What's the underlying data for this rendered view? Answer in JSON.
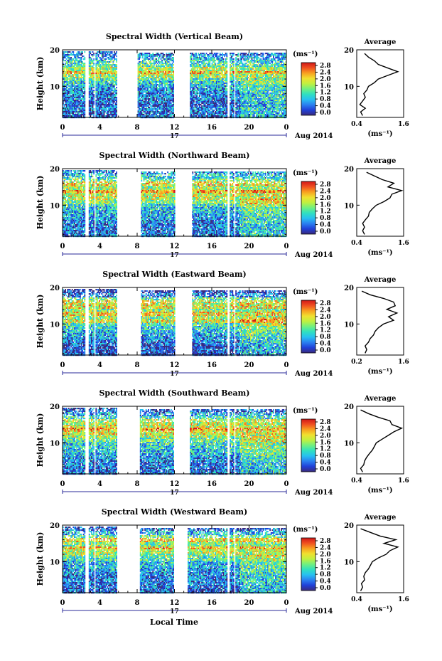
{
  "figure": {
    "x_axis_label": "Local Time",
    "date_label": "Aug 2014",
    "day_label": "17",
    "y_axis_label": "Height (km)",
    "colorbar_unit": "(ms⁻¹)",
    "colorbar_ticks": [
      "2.8",
      "2.4",
      "2.0",
      "1.6",
      "1.2",
      "0.8",
      "0.4",
      "0.0"
    ],
    "x_ticks": [
      "0",
      "4",
      "8",
      "12",
      "16",
      "20",
      "0"
    ],
    "y_ticks": [
      "20",
      "10"
    ],
    "profile_title": "Average",
    "profile_xlabel": "(ms⁻¹)",
    "colormap": [
      "#3a2a7e",
      "#2040d8",
      "#2a80f0",
      "#28c0f0",
      "#30e0c0",
      "#70f080",
      "#c0f040",
      "#f0e030",
      "#f8a020",
      "#f05020",
      "#d01818"
    ]
  },
  "chart_data": [
    {
      "type": "heatmap",
      "title": "Spectral Width (Vertical Beam)",
      "x_range_hours": [
        0,
        24
      ],
      "y_range_km": [
        1.5,
        20
      ],
      "data_gaps_hours": [
        [
          2.4,
          2.7
        ],
        [
          3.3,
          3.5
        ],
        [
          5.8,
          8.0
        ],
        [
          11.9,
          13.6
        ],
        [
          17.6,
          17.8
        ],
        [
          18.3,
          18.5
        ]
      ],
      "profile": {
        "x_ticks": [
          "0.4",
          "1.6"
        ],
        "xlim": [
          0.4,
          1.6
        ],
        "height_km": [
          2,
          3,
          4,
          5,
          6,
          7,
          8,
          9,
          10,
          11,
          12,
          13,
          14,
          15,
          16,
          17,
          18,
          19
        ],
        "mean_width": [
          0.55,
          0.5,
          0.62,
          0.48,
          0.55,
          0.62,
          0.58,
          0.66,
          0.7,
          0.85,
          0.95,
          1.2,
          1.45,
          1.2,
          0.95,
          0.85,
          0.7,
          0.6
        ]
      }
    },
    {
      "type": "heatmap",
      "title": "Spectral Width (Northward Beam)",
      "x_range_hours": [
        0,
        24
      ],
      "y_range_km": [
        1.5,
        20
      ],
      "data_gaps_hours": [
        [
          2.4,
          2.7
        ],
        [
          3.3,
          3.5
        ],
        [
          5.8,
          8.4
        ],
        [
          12.0,
          13.8
        ],
        [
          17.6,
          17.8
        ],
        [
          18.3,
          18.5
        ]
      ],
      "profile": {
        "x_ticks": [
          "0.4",
          "1.6"
        ],
        "xlim": [
          0.4,
          1.6
        ],
        "height_km": [
          2,
          3,
          4,
          5,
          6,
          7,
          8,
          9,
          10,
          11,
          12,
          13,
          14,
          15,
          16,
          17,
          18,
          19
        ],
        "mean_width": [
          0.6,
          0.55,
          0.6,
          0.55,
          0.62,
          0.7,
          0.72,
          0.8,
          0.9,
          1.1,
          1.25,
          1.3,
          1.55,
          1.2,
          1.35,
          1.05,
          0.85,
          0.65
        ]
      }
    },
    {
      "type": "heatmap",
      "title": "Spectral Width (Eastward Beam)",
      "x_range_hours": [
        0,
        24
      ],
      "y_range_km": [
        1.5,
        20
      ],
      "data_gaps_hours": [
        [
          2.4,
          2.7
        ],
        [
          3.3,
          3.5
        ],
        [
          5.8,
          8.4
        ],
        [
          12.0,
          13.8
        ],
        [
          17.6,
          17.8
        ],
        [
          18.3,
          18.5
        ]
      ],
      "profile": {
        "x_ticks": [
          "0.2",
          "1.6"
        ],
        "xlim": [
          0.2,
          1.6
        ],
        "height_km": [
          2,
          3,
          4,
          5,
          6,
          7,
          8,
          9,
          10,
          11,
          12,
          13,
          14,
          15,
          16,
          17,
          18,
          19
        ],
        "mean_width": [
          0.45,
          0.5,
          0.45,
          0.55,
          0.6,
          0.7,
          0.75,
          0.85,
          1.0,
          1.3,
          1.15,
          1.4,
          1.1,
          1.35,
          1.3,
          1.0,
          0.6,
          0.35
        ]
      }
    },
    {
      "type": "heatmap",
      "title": "Spectral Width (Southward Beam)",
      "x_range_hours": [
        0,
        24
      ],
      "y_range_km": [
        1.5,
        20
      ],
      "data_gaps_hours": [
        [
          2.4,
          2.7
        ],
        [
          3.3,
          3.5
        ],
        [
          5.8,
          8.2
        ],
        [
          11.9,
          13.6
        ],
        [
          17.6,
          17.8
        ],
        [
          18.3,
          18.5
        ]
      ],
      "profile": {
        "x_ticks": [
          "0.4",
          "1.6"
        ],
        "xlim": [
          0.4,
          1.6
        ],
        "height_km": [
          2,
          3,
          4,
          5,
          6,
          7,
          8,
          9,
          10,
          11,
          12,
          13,
          14,
          15,
          16,
          17,
          18,
          19
        ],
        "mean_width": [
          0.55,
          0.5,
          0.58,
          0.6,
          0.65,
          0.72,
          0.8,
          0.85,
          0.9,
          1.05,
          1.2,
          1.35,
          1.55,
          1.3,
          1.25,
          0.95,
          0.7,
          0.5
        ]
      }
    },
    {
      "type": "heatmap",
      "title": "Spectral Width (Westward Beam)",
      "x_range_hours": [
        0,
        24
      ],
      "y_range_km": [
        1.5,
        20
      ],
      "data_gaps_hours": [
        [
          2.4,
          2.7
        ],
        [
          3.3,
          3.5
        ],
        [
          5.8,
          8.2
        ],
        [
          11.9,
          13.4
        ],
        [
          17.6,
          17.8
        ],
        [
          18.3,
          18.5
        ]
      ],
      "profile": {
        "x_ticks": [
          "0.4",
          "1.6"
        ],
        "xlim": [
          0.4,
          1.6
        ],
        "height_km": [
          2,
          3,
          4,
          5,
          6,
          7,
          8,
          9,
          10,
          11,
          12,
          13,
          14,
          15,
          16,
          17,
          18,
          19
        ],
        "mean_width": [
          0.5,
          0.55,
          0.52,
          0.6,
          0.58,
          0.62,
          0.7,
          0.75,
          0.8,
          0.95,
          1.15,
          1.25,
          1.45,
          1.1,
          1.4,
          1.0,
          0.75,
          0.5
        ]
      }
    }
  ]
}
